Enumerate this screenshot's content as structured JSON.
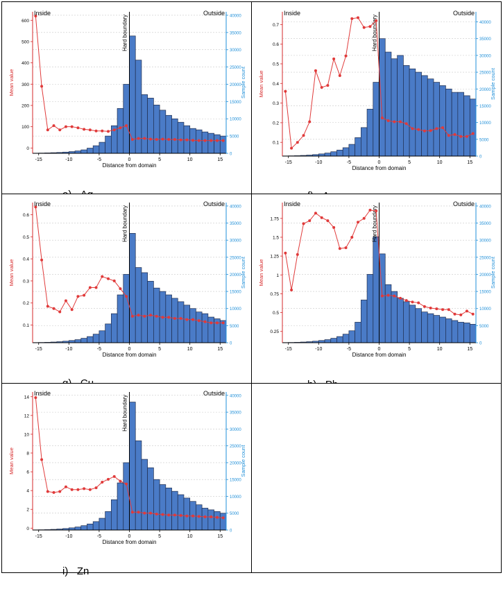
{
  "figure_labels": {
    "y_left": "Mean value",
    "y_right": "Sample count",
    "x": "Distance from domain",
    "inside": "Inside",
    "outside": "Outside",
    "boundary": "Hard boundary"
  },
  "colors": {
    "bar_fill": "#4a7bc7",
    "bar_stroke": "#1f2d4d",
    "line": "#e03a3a",
    "left_axis": "#d62728",
    "right_axis": "#1f8fd8"
  },
  "chart_data": [
    {
      "id": "ag",
      "caption_letter": "e)",
      "caption_element": "Ag",
      "type": "bar+line",
      "xlim": [
        -16,
        16
      ],
      "x_ticks": [
        -15,
        -10,
        -5,
        0,
        5,
        10,
        15
      ],
      "ylim": [
        -25,
        640
      ],
      "y_ticks": [
        0,
        100,
        200,
        300,
        400,
        500,
        600
      ],
      "y2lim": [
        0,
        41000
      ],
      "y2_ticks": [
        0,
        5000,
        10000,
        15000,
        20000,
        25000,
        30000,
        35000,
        40000
      ],
      "line_x": [
        -15.5,
        -14.5,
        -13.5,
        -12.5,
        -11.5,
        -10.5,
        -9.5,
        -8.5,
        -7.5,
        -6.5,
        -5.5,
        -4.5,
        -3.5,
        -2.5,
        -1.5,
        -0.5,
        0.5,
        1.5,
        2.5,
        3.5,
        4.5,
        5.5,
        6.5,
        7.5,
        8.5,
        9.5,
        10.5,
        11.5,
        12.5,
        13.5,
        14.5,
        15.5
      ],
      "line_y": [
        620,
        290,
        85,
        105,
        85,
        100,
        100,
        95,
        88,
        85,
        80,
        80,
        78,
        85,
        95,
        105,
        40,
        45,
        45,
        42,
        40,
        42,
        40,
        40,
        38,
        38,
        36,
        35,
        35,
        35,
        35,
        35
      ],
      "bar_x": [
        -15.5,
        -14.5,
        -13.5,
        -12.5,
        -11.5,
        -10.5,
        -9.5,
        -8.5,
        -7.5,
        -6.5,
        -5.5,
        -4.5,
        -3.5,
        -2.5,
        -1.5,
        -0.5,
        0.5,
        1.5,
        2.5,
        3.5,
        4.5,
        5.5,
        6.5,
        7.5,
        8.5,
        9.5,
        10.5,
        11.5,
        12.5,
        13.5,
        14.5,
        15.5
      ],
      "bar_y": [
        50,
        80,
        120,
        180,
        250,
        350,
        500,
        700,
        1000,
        1500,
        2200,
        3200,
        5000,
        8000,
        13000,
        20000,
        34000,
        27000,
        17000,
        16000,
        14000,
        12500,
        11000,
        10000,
        9000,
        8000,
        7200,
        6800,
        6200,
        5800,
        5400,
        5000
      ]
    },
    {
      "id": "au",
      "caption_letter": "f)",
      "caption_element": "Au",
      "type": "bar+line",
      "xlim": [
        -16,
        16
      ],
      "x_ticks": [
        -15,
        -10,
        -5,
        0,
        5,
        10,
        15
      ],
      "ylim": [
        0.03,
        0.765
      ],
      "y_ticks": [
        0.1,
        0.2,
        0.3,
        0.4,
        0.5,
        0.6,
        0.7
      ],
      "y2lim": [
        0,
        43000
      ],
      "y2_ticks": [
        0,
        5000,
        10000,
        15000,
        20000,
        25000,
        30000,
        35000,
        40000
      ],
      "line_x": [
        -15.5,
        -14.5,
        -13.5,
        -12.5,
        -11.5,
        -10.5,
        -9.5,
        -8.5,
        -7.5,
        -6.5,
        -5.5,
        -4.5,
        -3.5,
        -2.5,
        -1.5,
        -0.5,
        0.5,
        1.5,
        2.5,
        3.5,
        4.5,
        5.5,
        6.5,
        7.5,
        8.5,
        9.5,
        10.5,
        11.5,
        12.5,
        13.5,
        14.5,
        15.5
      ],
      "line_y": [
        0.36,
        0.07,
        0.1,
        0.135,
        0.205,
        0.465,
        0.38,
        0.39,
        0.525,
        0.44,
        0.54,
        0.73,
        0.735,
        0.685,
        0.69,
        0.72,
        0.225,
        0.21,
        0.205,
        0.205,
        0.195,
        0.17,
        0.165,
        0.158,
        0.16,
        0.17,
        0.175,
        0.135,
        0.14,
        0.13,
        0.13,
        0.145
      ],
      "bar_x": [
        -15.5,
        -14.5,
        -13.5,
        -12.5,
        -11.5,
        -10.5,
        -9.5,
        -8.5,
        -7.5,
        -6.5,
        -5.5,
        -4.5,
        -3.5,
        -2.5,
        -1.5,
        -0.5,
        0.5,
        1.5,
        2.5,
        3.5,
        4.5,
        5.5,
        6.5,
        7.5,
        8.5,
        9.5,
        10.5,
        11.5,
        12.5,
        13.5,
        14.5,
        15.5
      ],
      "bar_y": [
        50,
        80,
        120,
        200,
        300,
        450,
        650,
        900,
        1300,
        1800,
        2500,
        3500,
        5500,
        8500,
        14000,
        22000,
        35000,
        31000,
        29000,
        30000,
        27000,
        26000,
        25000,
        24000,
        23000,
        22000,
        21000,
        20000,
        19000,
        19000,
        18000,
        17000
      ]
    },
    {
      "id": "cu",
      "caption_letter": "g)",
      "caption_element": "Cu",
      "type": "bar+line",
      "xlim": [
        -16,
        16
      ],
      "x_ticks": [
        -15,
        -10,
        -5,
        0,
        5,
        10,
        15
      ],
      "ylim": [
        0.02,
        0.655
      ],
      "y_ticks": [
        0.1,
        0.2,
        0.3,
        0.4,
        0.5,
        0.6
      ],
      "y2lim": [
        0,
        41000
      ],
      "y2_ticks": [
        0,
        5000,
        10000,
        15000,
        20000,
        25000,
        30000,
        35000,
        40000
      ],
      "line_x": [
        -15.5,
        -14.5,
        -13.5,
        -12.5,
        -11.5,
        -10.5,
        -9.5,
        -8.5,
        -7.5,
        -6.5,
        -5.5,
        -4.5,
        -3.5,
        -2.5,
        -1.5,
        -0.5,
        0.5,
        1.5,
        2.5,
        3.5,
        4.5,
        5.5,
        6.5,
        7.5,
        8.5,
        9.5,
        10.5,
        11.5,
        12.5,
        13.5,
        14.5,
        15.5
      ],
      "line_y": [
        0.635,
        0.395,
        0.185,
        0.175,
        0.16,
        0.21,
        0.17,
        0.23,
        0.235,
        0.27,
        0.27,
        0.32,
        0.31,
        0.3,
        0.265,
        0.23,
        0.14,
        0.145,
        0.14,
        0.145,
        0.14,
        0.135,
        0.135,
        0.13,
        0.13,
        0.125,
        0.125,
        0.12,
        0.115,
        0.11,
        0.11,
        0.11
      ],
      "bar_x": [
        -15.5,
        -14.5,
        -13.5,
        -12.5,
        -11.5,
        -10.5,
        -9.5,
        -8.5,
        -7.5,
        -6.5,
        -5.5,
        -4.5,
        -3.5,
        -2.5,
        -1.5,
        -0.5,
        0.5,
        1.5,
        2.5,
        3.5,
        4.5,
        5.5,
        6.5,
        7.5,
        8.5,
        9.5,
        10.5,
        11.5,
        12.5,
        13.5,
        14.5,
        15.5
      ],
      "bar_y": [
        50,
        80,
        120,
        200,
        300,
        450,
        650,
        900,
        1300,
        1800,
        2500,
        3500,
        5500,
        8500,
        14000,
        20000,
        32000,
        22000,
        20500,
        18000,
        16000,
        15000,
        14000,
        13000,
        12000,
        11000,
        10000,
        9000,
        8500,
        7500,
        7000,
        6500
      ]
    },
    {
      "id": "pb",
      "caption_letter": "h)",
      "caption_element": "Pb",
      "type": "bar+line",
      "xlim": [
        -16,
        16
      ],
      "x_ticks": [
        -15,
        -10,
        -5,
        0,
        5,
        10,
        15
      ],
      "ylim": [
        0.1,
        1.96
      ],
      "y_ticks": [
        0.25,
        0.5,
        0.75,
        1.0,
        1.25,
        1.5,
        1.75
      ],
      "y2lim": [
        0,
        41000
      ],
      "y2_ticks": [
        0,
        5000,
        10000,
        15000,
        20000,
        25000,
        30000,
        35000,
        40000
      ],
      "line_x": [
        -15.5,
        -14.5,
        -13.5,
        -12.5,
        -11.5,
        -10.5,
        -9.5,
        -8.5,
        -7.5,
        -6.5,
        -5.5,
        -4.5,
        -3.5,
        -2.5,
        -1.5,
        -0.5,
        0.5,
        1.5,
        2.5,
        3.5,
        4.5,
        5.5,
        6.5,
        7.5,
        8.5,
        9.5,
        10.5,
        11.5,
        12.5,
        13.5,
        14.5,
        15.5
      ],
      "line_y": [
        1.29,
        0.8,
        1.27,
        1.68,
        1.72,
        1.82,
        1.76,
        1.72,
        1.63,
        1.35,
        1.36,
        1.5,
        1.7,
        1.75,
        1.86,
        1.85,
        0.72,
        0.73,
        0.72,
        0.69,
        0.66,
        0.64,
        0.63,
        0.58,
        0.56,
        0.55,
        0.54,
        0.54,
        0.48,
        0.47,
        0.52,
        0.48
      ],
      "bar_x": [
        -15.5,
        -14.5,
        -13.5,
        -12.5,
        -11.5,
        -10.5,
        -9.5,
        -8.5,
        -7.5,
        -6.5,
        -5.5,
        -4.5,
        -3.5,
        -2.5,
        -1.5,
        -0.5,
        0.5,
        1.5,
        2.5,
        3.5,
        4.5,
        5.5,
        6.5,
        7.5,
        8.5,
        9.5,
        10.5,
        11.5,
        12.5,
        13.5,
        14.5,
        15.5
      ],
      "bar_y": [
        50,
        80,
        120,
        200,
        300,
        450,
        650,
        900,
        1300,
        1800,
        2500,
        3500,
        6000,
        12500,
        20000,
        31000,
        26000,
        17000,
        15000,
        13000,
        12000,
        11000,
        10000,
        9000,
        8500,
        8000,
        7500,
        7000,
        6500,
        6000,
        5800,
        5400
      ]
    },
    {
      "id": "zn",
      "caption_letter": "i)",
      "caption_element": "Zn",
      "type": "bar+line",
      "xlim": [
        -16,
        16
      ],
      "x_ticks": [
        -15,
        -10,
        -5,
        0,
        5,
        10,
        15
      ],
      "ylim": [
        -0.2,
        14.5
      ],
      "y_ticks": [
        0,
        2,
        4,
        6,
        8,
        10,
        12,
        14
      ],
      "y2lim": [
        0,
        41000
      ],
      "y2_ticks": [
        0,
        5000,
        10000,
        15000,
        20000,
        25000,
        30000,
        35000,
        40000
      ],
      "line_x": [
        -15.5,
        -14.5,
        -13.5,
        -12.5,
        -11.5,
        -10.5,
        -9.5,
        -8.5,
        -7.5,
        -6.5,
        -5.5,
        -4.5,
        -3.5,
        -2.5,
        -1.5,
        -0.5,
        0.5,
        1.5,
        2.5,
        3.5,
        4.5,
        5.5,
        6.5,
        7.5,
        8.5,
        9.5,
        10.5,
        11.5,
        12.5,
        13.5,
        14.5,
        15.5
      ],
      "line_y": [
        13.9,
        7.3,
        3.9,
        3.8,
        3.9,
        4.4,
        4.1,
        4.1,
        4.2,
        4.1,
        4.3,
        4.9,
        5.2,
        5.5,
        5.0,
        4.7,
        1.7,
        1.7,
        1.6,
        1.6,
        1.5,
        1.45,
        1.4,
        1.4,
        1.35,
        1.3,
        1.3,
        1.25,
        1.2,
        1.2,
        1.15,
        1.1
      ],
      "bar_x": [
        -15.5,
        -14.5,
        -13.5,
        -12.5,
        -11.5,
        -10.5,
        -9.5,
        -8.5,
        -7.5,
        -6.5,
        -5.5,
        -4.5,
        -3.5,
        -2.5,
        -1.5,
        -0.5,
        0.5,
        1.5,
        2.5,
        3.5,
        4.5,
        5.5,
        6.5,
        7.5,
        8.5,
        9.5,
        10.5,
        11.5,
        12.5,
        13.5,
        14.5,
        15.5
      ],
      "bar_y": [
        50,
        80,
        120,
        200,
        300,
        450,
        650,
        900,
        1300,
        1800,
        2500,
        3500,
        5500,
        9000,
        14000,
        20000,
        38000,
        26500,
        21000,
        18500,
        15000,
        13500,
        12500,
        11500,
        10500,
        9500,
        8500,
        7500,
        6500,
        6000,
        5500,
        5000
      ]
    }
  ]
}
